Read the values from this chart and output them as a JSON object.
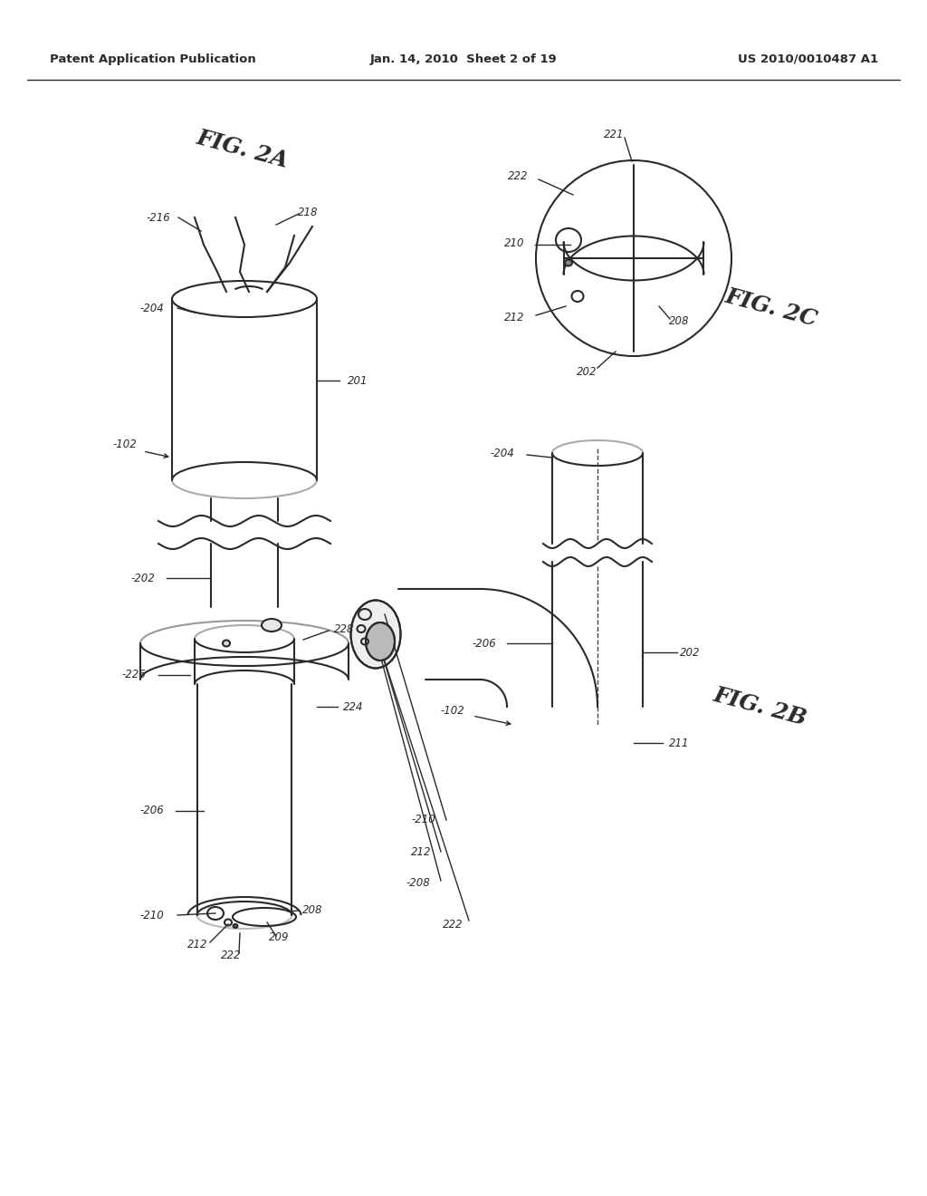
{
  "header_left": "Patent Application Publication",
  "header_center": "Jan. 14, 2010  Sheet 2 of 19",
  "header_right": "US 2010/0010487 A1",
  "fig2a_label": "FIG. 2A",
  "fig2b_label": "FIG. 2B",
  "fig2c_label": "FIG. 2C",
  "bg_color": "#ffffff",
  "line_color": "#2a2a2a",
  "line_width": 1.5
}
